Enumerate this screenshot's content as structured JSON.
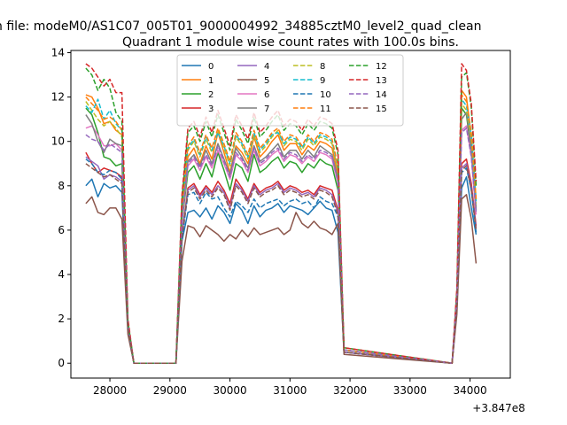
{
  "figure": {
    "suptitle": "n file: modeM0/AS1C07_005T01_9000004992_34885cztM0_level2_quad_clean",
    "title": "Quadrant 1 module wise count rates with 100.0s bins.",
    "offset_label": "+3.847e8"
  },
  "chart_data": {
    "type": "line",
    "title": "Quadrant 1 module wise count rates with 100.0s bins.",
    "xlabel": "",
    "ylabel": "",
    "x_offset": 384700000,
    "xlim": [
      27350,
      34670
    ],
    "ylim": [
      -0.67,
      14.1
    ],
    "xticks": [
      28000,
      29000,
      30000,
      31000,
      32000,
      33000,
      34000
    ],
    "xtick_labels": [
      "28000",
      "29000",
      "30000",
      "31000",
      "32000",
      "33000",
      "34000"
    ],
    "yticks": [
      0,
      2,
      4,
      6,
      8,
      10,
      12,
      14
    ],
    "ytick_labels": [
      "0",
      "2",
      "4",
      "6",
      "8",
      "10",
      "12",
      "14"
    ],
    "legend": {
      "placement": "top-center",
      "columns": 4
    },
    "segments": [
      {
        "start": 27600,
        "end": 28400,
        "step": 100
      },
      {
        "start": 29100,
        "end": 31900,
        "step": 100
      },
      {
        "start": 33700,
        "end": 34130,
        "step": 80
      }
    ],
    "series": [
      {
        "name": "0",
        "color": "#1f77b4",
        "dash": "solid",
        "seg": [
          [
            8.0,
            8.3,
            7.5,
            8.1,
            7.9,
            8.0,
            7.7,
            1.6,
            0.0
          ],
          [
            0.0,
            5.5,
            6.8,
            6.9,
            6.6,
            7.0,
            6.5,
            7.1,
            6.8,
            6.3,
            7.2,
            6.9,
            6.3,
            7.1,
            6.6,
            6.9,
            7.0,
            7.2,
            6.8,
            7.1,
            7.0,
            6.9,
            6.7,
            7.0,
            7.3,
            7.0,
            6.9,
            5.9,
            0.5
          ],
          [
            0.0,
            2.5,
            7.9,
            8.4,
            7.0,
            5.8
          ]
        ]
      },
      {
        "name": "1",
        "color": "#ff7f0e",
        "dash": "solid",
        "seg": [
          [
            12.1,
            12.0,
            11.5,
            10.8,
            10.9,
            10.5,
            10.3,
            1.8,
            0.0
          ],
          [
            0.0,
            6.8,
            9.3,
            9.7,
            9.0,
            9.8,
            9.2,
            10.4,
            9.5,
            8.6,
            9.8,
            9.5,
            9.0,
            10.2,
            9.3,
            9.6,
            10.0,
            10.3,
            9.6,
            9.9,
            9.9,
            9.4,
            9.8,
            9.6,
            10.0,
            9.9,
            9.7,
            8.5,
            0.6
          ],
          [
            0.0,
            3.0,
            12.3,
            12.0,
            10.2,
            7.4
          ]
        ]
      },
      {
        "name": "2",
        "color": "#2ca02c",
        "dash": "solid",
        "seg": [
          [
            11.5,
            11.2,
            10.4,
            9.3,
            9.2,
            8.9,
            9.0,
            1.7,
            0.0
          ],
          [
            0.0,
            6.4,
            8.6,
            8.9,
            8.3,
            9.0,
            8.4,
            9.5,
            8.7,
            7.8,
            9.0,
            8.8,
            8.2,
            9.4,
            8.6,
            8.8,
            9.1,
            9.3,
            8.8,
            9.1,
            9.0,
            8.6,
            9.0,
            8.8,
            9.2,
            9.0,
            8.9,
            7.8,
            0.6
          ],
          [
            0.0,
            2.8,
            11.5,
            11.2,
            9.5,
            6.9
          ]
        ]
      },
      {
        "name": "3",
        "color": "#d62728",
        "dash": "solid",
        "seg": [
          [
            9.5,
            9.0,
            8.6,
            8.8,
            8.7,
            8.6,
            8.4,
            1.6,
            0.0
          ],
          [
            0.0,
            5.8,
            7.9,
            8.1,
            7.6,
            8.0,
            7.7,
            8.2,
            7.8,
            7.2,
            8.3,
            7.9,
            7.4,
            8.1,
            7.7,
            7.9,
            8.0,
            8.2,
            7.8,
            8.0,
            7.9,
            7.7,
            7.8,
            7.6,
            8.0,
            7.9,
            7.8,
            6.9,
            0.5
          ],
          [
            0.0,
            2.6,
            9.0,
            9.2,
            8.1,
            6.2
          ]
        ]
      },
      {
        "name": "4",
        "color": "#9467bd",
        "dash": "solid",
        "seg": [
          [
            9.3,
            9.1,
            8.9,
            8.3,
            8.5,
            8.4,
            8.2,
            1.6,
            0.0
          ],
          [
            0.0,
            5.8,
            7.8,
            8.0,
            7.5,
            7.9,
            7.6,
            8.0,
            7.7,
            7.0,
            8.1,
            7.8,
            7.3,
            8.0,
            7.6,
            7.8,
            7.9,
            8.1,
            7.7,
            7.9,
            7.8,
            7.6,
            7.7,
            7.5,
            7.9,
            7.8,
            7.6,
            6.8,
            0.5
          ],
          [
            0.0,
            2.5,
            8.8,
            9.0,
            7.9,
            6.1
          ]
        ]
      },
      {
        "name": "5",
        "color": "#8c564b",
        "dash": "solid",
        "seg": [
          [
            7.2,
            7.5,
            6.8,
            6.7,
            7.0,
            7.0,
            6.5,
            1.3,
            0.0
          ],
          [
            0.0,
            4.6,
            6.2,
            6.1,
            5.7,
            6.2,
            6.0,
            5.8,
            5.5,
            5.8,
            5.6,
            6.0,
            5.7,
            6.1,
            5.8,
            5.9,
            6.0,
            6.1,
            5.8,
            6.0,
            6.8,
            6.3,
            6.1,
            6.4,
            6.1,
            6.0,
            5.8,
            6.3,
            0.4
          ],
          [
            0.0,
            2.2,
            7.4,
            7.6,
            6.5,
            4.5
          ]
        ]
      },
      {
        "name": "6",
        "color": "#e377c2",
        "dash": "solid",
        "seg": [
          [
            10.6,
            10.7,
            10.3,
            9.8,
            9.8,
            9.9,
            9.6,
            1.7,
            0.0
          ],
          [
            0.0,
            6.5,
            8.9,
            9.2,
            8.7,
            9.3,
            8.8,
            9.6,
            9.0,
            8.3,
            9.4,
            9.1,
            8.6,
            9.6,
            8.9,
            9.1,
            9.4,
            9.6,
            9.1,
            9.4,
            9.3,
            9.0,
            9.3,
            9.1,
            9.5,
            9.4,
            9.2,
            8.1,
            0.6
          ],
          [
            0.0,
            2.9,
            10.5,
            10.7,
            9.3,
            6.7
          ]
        ]
      },
      {
        "name": "7",
        "color": "#7f7f7f",
        "dash": "solid",
        "seg": [
          [
            11.2,
            10.8,
            10.0,
            9.5,
            10.1,
            9.9,
            9.8,
            1.8,
            0.0
          ],
          [
            0.0,
            6.7,
            9.1,
            9.4,
            8.9,
            9.6,
            9.0,
            9.9,
            9.2,
            8.5,
            9.7,
            9.3,
            8.8,
            9.8,
            9.1,
            9.3,
            9.6,
            9.9,
            9.3,
            9.6,
            9.6,
            9.2,
            9.6,
            9.3,
            9.8,
            9.6,
            9.4,
            8.3,
            0.6
          ],
          [
            0.0,
            3.0,
            11.0,
            11.3,
            9.7,
            7.0
          ]
        ]
      },
      {
        "name": "8",
        "color": "#bcbd22",
        "dash": "dashed",
        "seg": [
          [
            11.8,
            11.4,
            11.0,
            10.7,
            10.9,
            10.6,
            10.2,
            1.8,
            0.0
          ],
          [
            0.0,
            6.9,
            9.6,
            10.0,
            9.3,
            10.1,
            9.5,
            10.5,
            9.7,
            8.9,
            10.2,
            9.8,
            9.2,
            10.3,
            9.5,
            9.8,
            10.2,
            10.5,
            9.8,
            10.1,
            10.0,
            9.6,
            10.1,
            9.8,
            10.2,
            10.1,
            9.9,
            8.7,
            0.6
          ],
          [
            0.0,
            3.1,
            11.7,
            11.4,
            10.1,
            7.2
          ]
        ]
      },
      {
        "name": "9",
        "color": "#17becf",
        "dash": "dashed",
        "seg": [
          [
            11.6,
            11.3,
            11.9,
            11.0,
            11.4,
            10.8,
            10.5,
            1.8,
            0.0
          ],
          [
            0.0,
            7.0,
            9.7,
            10.1,
            9.4,
            10.2,
            9.6,
            10.4,
            9.8,
            9.0,
            10.3,
            9.9,
            9.3,
            10.4,
            9.6,
            9.9,
            10.3,
            10.4,
            9.9,
            10.2,
            10.1,
            9.7,
            10.2,
            9.9,
            10.3,
            10.2,
            10.0,
            8.8,
            0.6
          ],
          [
            0.0,
            3.1,
            11.9,
            11.6,
            10.3,
            7.3
          ]
        ]
      },
      {
        "name": "10",
        "color": "#1f77b4",
        "dash": "dashed",
        "seg": [
          [
            9.2,
            9.0,
            8.6,
            8.5,
            8.7,
            8.6,
            8.3,
            1.6,
            0.0
          ],
          [
            0.0,
            5.6,
            7.6,
            7.7,
            7.2,
            7.7,
            7.4,
            7.5,
            7.0,
            6.6,
            7.3,
            7.1,
            6.8,
            7.4,
            7.0,
            7.2,
            7.3,
            7.4,
            7.1,
            7.3,
            7.4,
            7.2,
            7.3,
            7.0,
            7.5,
            7.3,
            7.2,
            6.6,
            0.5
          ],
          [
            0.0,
            2.5,
            8.6,
            8.8,
            7.8,
            5.9
          ]
        ]
      },
      {
        "name": "11",
        "color": "#ff7f0e",
        "dash": "dashed",
        "seg": [
          [
            12.0,
            11.7,
            11.4,
            11.0,
            11.1,
            10.9,
            10.5,
            1.8,
            0.0
          ],
          [
            0.0,
            7.0,
            9.8,
            10.2,
            9.5,
            10.3,
            9.7,
            10.6,
            9.9,
            9.1,
            10.4,
            10.0,
            9.4,
            10.5,
            9.7,
            10.0,
            10.4,
            10.6,
            10.0,
            10.3,
            10.2,
            9.8,
            10.3,
            10.0,
            10.4,
            10.3,
            10.1,
            8.9,
            0.6
          ],
          [
            0.0,
            3.1,
            12.1,
            11.8,
            10.4,
            7.4
          ]
        ]
      },
      {
        "name": "12",
        "color": "#2ca02c",
        "dash": "dashed",
        "seg": [
          [
            13.3,
            13.0,
            12.3,
            12.8,
            12.4,
            11.3,
            10.9,
            1.9,
            0.0
          ],
          [
            0.0,
            7.4,
            10.4,
            10.7,
            10.0,
            10.9,
            10.2,
            11.2,
            10.4,
            9.6,
            11.0,
            10.5,
            9.9,
            11.1,
            10.2,
            10.5,
            10.9,
            11.2,
            10.5,
            10.8,
            10.7,
            10.3,
            10.8,
            10.5,
            10.9,
            10.8,
            10.6,
            9.4,
            0.7
          ],
          [
            0.0,
            3.3,
            12.9,
            13.1,
            11.5,
            8.0
          ]
        ]
      },
      {
        "name": "13",
        "color": "#d62728",
        "dash": "dashed",
        "seg": [
          [
            13.5,
            13.3,
            12.9,
            12.5,
            12.8,
            12.2,
            12.2,
            2.0,
            0.0
          ],
          [
            0.0,
            7.6,
            10.6,
            10.9,
            10.2,
            11.1,
            10.4,
            11.4,
            10.6,
            9.8,
            11.2,
            10.7,
            10.1,
            11.3,
            10.4,
            10.7,
            11.1,
            11.4,
            10.7,
            11.0,
            10.9,
            10.5,
            11.0,
            10.7,
            11.1,
            11.0,
            10.8,
            9.6,
            0.7
          ],
          [
            0.0,
            3.4,
            13.5,
            13.2,
            11.7,
            8.2
          ]
        ]
      },
      {
        "name": "14",
        "color": "#9467bd",
        "dash": "dashed",
        "seg": [
          [
            10.3,
            10.1,
            10.0,
            9.6,
            9.9,
            9.7,
            9.5,
            1.7,
            0.0
          ],
          [
            0.0,
            6.5,
            9.0,
            9.3,
            8.8,
            9.4,
            8.9,
            9.8,
            9.1,
            8.4,
            9.5,
            9.2,
            8.7,
            9.7,
            9.0,
            9.2,
            9.5,
            9.7,
            9.2,
            9.5,
            9.4,
            9.1,
            9.4,
            9.2,
            9.6,
            9.5,
            9.3,
            8.2,
            0.6
          ],
          [
            0.0,
            2.9,
            10.4,
            10.6,
            9.3,
            6.8
          ]
        ]
      },
      {
        "name": "15",
        "color": "#8c564b",
        "dash": "dashed",
        "seg": [
          [
            9.0,
            8.8,
            8.6,
            8.4,
            8.5,
            8.3,
            8.1,
            1.6,
            0.0
          ],
          [
            0.0,
            5.7,
            7.7,
            7.9,
            7.4,
            7.8,
            7.5,
            7.9,
            7.6,
            6.9,
            8.0,
            7.7,
            7.2,
            7.9,
            7.5,
            7.7,
            7.8,
            8.0,
            7.6,
            7.8,
            7.7,
            7.5,
            7.6,
            7.4,
            7.8,
            7.7,
            7.5,
            6.7,
            0.5
          ],
          [
            0.0,
            2.5,
            8.7,
            8.9,
            7.8,
            6.0
          ]
        ]
      }
    ]
  }
}
